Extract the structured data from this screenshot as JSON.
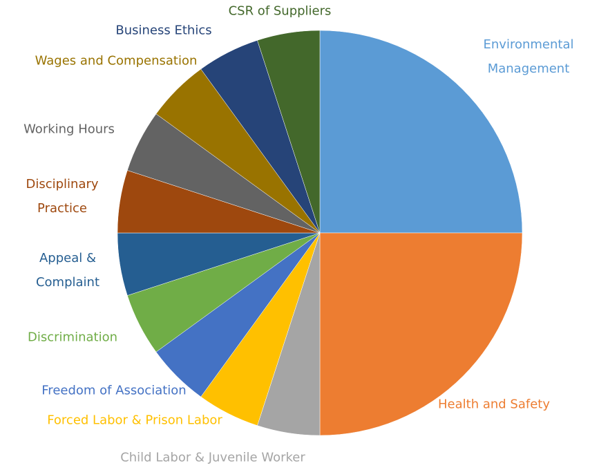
{
  "chart_data": {
    "type": "pie",
    "categories": [
      "Environmental Management",
      "Health and Safety",
      "Child Labor & Juvenile Worker",
      "Forced Labor & Prison Labor",
      "Freedom of Association",
      "Discrimination",
      "Appeal & Complaint",
      "Disciplinary Practice",
      "Working Hours",
      "Wages and Compensation",
      "Business Ethics",
      "CSR of Suppliers"
    ],
    "values": [
      25,
      25,
      5,
      5,
      5,
      5,
      5,
      5,
      5,
      5,
      5,
      5
    ],
    "colors": [
      "#5b9bd5",
      "#ed7d31",
      "#a5a5a5",
      "#ffc000",
      "#4472c4",
      "#70ad47",
      "#255e91",
      "#9e480e",
      "#636363",
      "#997300",
      "#264478",
      "#43682b"
    ]
  }
}
